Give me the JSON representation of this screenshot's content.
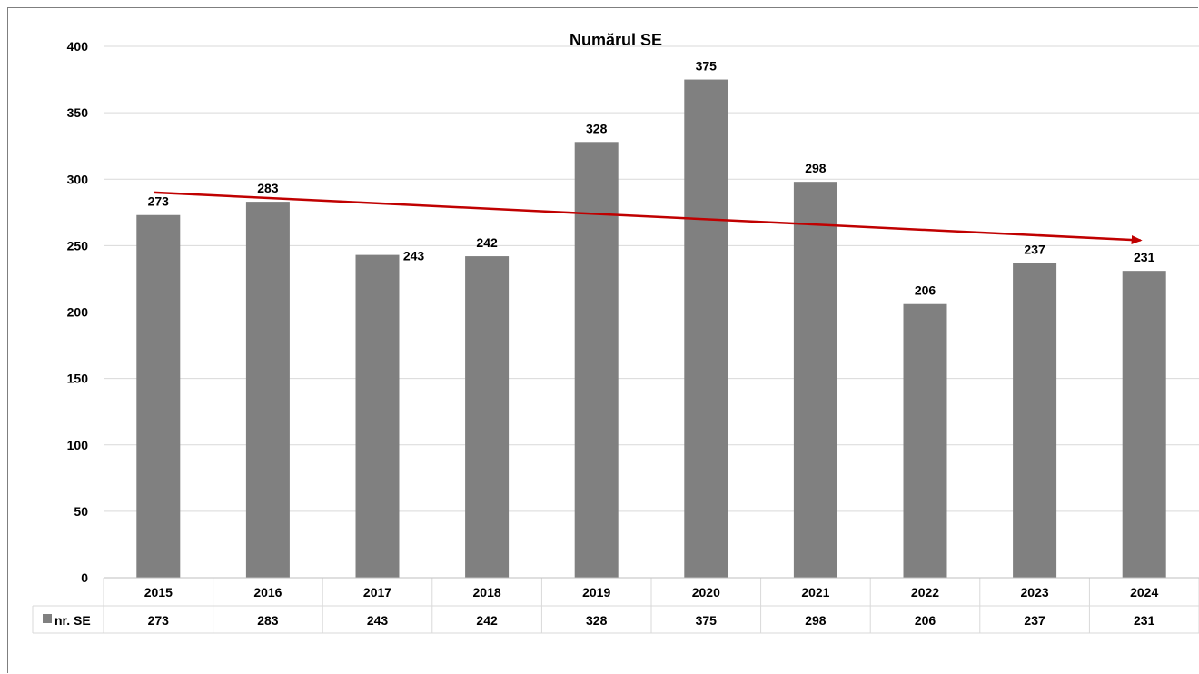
{
  "chart_data": {
    "type": "bar",
    "title": "Numărul SE",
    "categories": [
      "2015",
      "2016",
      "2017",
      "2018",
      "2019",
      "2020",
      "2021",
      "2022",
      "2023",
      "2024"
    ],
    "series": [
      {
        "name": "nr. SE",
        "values": [
          273,
          283,
          243,
          242,
          328,
          375,
          298,
          206,
          237,
          231
        ],
        "color": "#808080"
      }
    ],
    "yticks": [
      "0",
      "50",
      "100",
      "150",
      "200",
      "250",
      "300",
      "350",
      "400"
    ],
    "ylim": [
      0,
      400
    ],
    "grid": true,
    "data_table": true,
    "trend_arrow": {
      "from_value": 290,
      "to_value": 254,
      "color": "#c00000"
    }
  }
}
